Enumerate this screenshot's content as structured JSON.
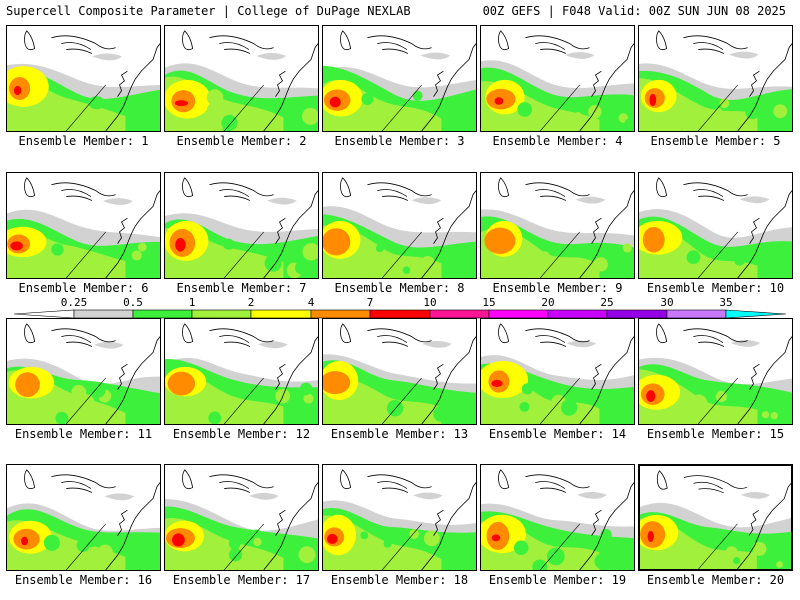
{
  "header": {
    "title": "Supercell Composite Parameter | College of DuPage NEXLAB",
    "run_info": "00Z GEFS | F048 Valid: 00Z SUN JUN 08 2025"
  },
  "members": [
    {
      "label": "Ensemble Member: 1"
    },
    {
      "label": "Ensemble Member: 2"
    },
    {
      "label": "Ensemble Member: 3"
    },
    {
      "label": "Ensemble Member: 4"
    },
    {
      "label": "Ensemble Member: 5"
    },
    {
      "label": "Ensemble Member: 6"
    },
    {
      "label": "Ensemble Member: 7"
    },
    {
      "label": "Ensemble Member: 8"
    },
    {
      "label": "Ensemble Member: 9"
    },
    {
      "label": "Ensemble Member: 10"
    },
    {
      "label": "Ensemble Member: 11"
    },
    {
      "label": "Ensemble Member: 12"
    },
    {
      "label": "Ensemble Member: 13"
    },
    {
      "label": "Ensemble Member: 14"
    },
    {
      "label": "Ensemble Member: 15"
    },
    {
      "label": "Ensemble Member: 16"
    },
    {
      "label": "Ensemble Member: 17"
    },
    {
      "label": "Ensemble Member: 18"
    },
    {
      "label": "Ensemble Member: 19"
    },
    {
      "label": "Ensemble Member: 20"
    }
  ],
  "colorbar": {
    "ticks": [
      "0.25",
      "0.5",
      "1",
      "2",
      "4",
      "7",
      "10",
      "15",
      "20",
      "25",
      "30",
      "35"
    ],
    "colors": [
      "#ffffff",
      "#d2d2d2",
      "#3cf03c",
      "#a0f03c",
      "#ffff00",
      "#ff8c00",
      "#ff0000",
      "#ff1493",
      "#ff00ff",
      "#c800ff",
      "#9600e6",
      "#c878ff",
      "#00ffff"
    ]
  }
}
